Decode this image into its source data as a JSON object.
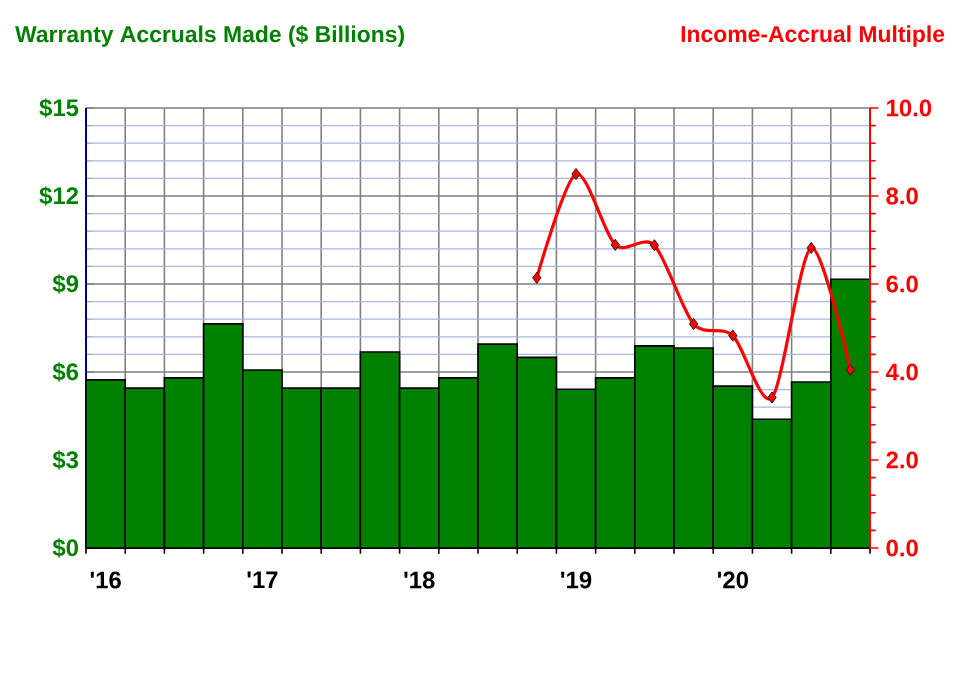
{
  "chart_data": {
    "type": "bar",
    "ylabel": "Warranty Accruals Made ($ Billions)",
    "y2label": "Income-Accrual Multiple",
    "categories": [
      "'16",
      null,
      null,
      null,
      "'17",
      null,
      null,
      null,
      "'18",
      null,
      null,
      null,
      "'19",
      null,
      null,
      null,
      "'20",
      null,
      null,
      null
    ],
    "series": [
      {
        "color": "#008000",
        "values": [
          5.73,
          5.45,
          5.8,
          7.64,
          6.07,
          5.45,
          5.45,
          6.68,
          5.45,
          5.8,
          6.95,
          6.5,
          5.41,
          5.8,
          6.89,
          6.82,
          5.52,
          4.39,
          5.66,
          9.16
        ]
      },
      {
        "type": "line",
        "axis": "y2",
        "color": "#ff0000",
        "marker": "diamond",
        "values": [
          null,
          null,
          null,
          null,
          null,
          null,
          null,
          null,
          null,
          null,
          null,
          6.14,
          8.5,
          6.89,
          6.88,
          5.09,
          4.83,
          3.42,
          6.82,
          4.05
        ]
      }
    ],
    "ylim": [
      0,
      15
    ],
    "yticks": [
      {
        "value": 0,
        "label": "$0"
      },
      {
        "value": 0.6,
        "label": null
      },
      {
        "value": 1.2,
        "label": null
      },
      {
        "value": 1.8,
        "label": null
      },
      {
        "value": 2.4,
        "label": null
      },
      {
        "value": 3,
        "label": "$3"
      },
      {
        "value": 3.6,
        "label": null
      },
      {
        "value": 4.2,
        "label": null
      },
      {
        "value": 4.8,
        "label": null
      },
      {
        "value": 5.4,
        "label": null
      },
      {
        "value": 6,
        "label": "$6"
      },
      {
        "value": 6.6,
        "label": null
      },
      {
        "value": 7.2,
        "label": null
      },
      {
        "value": 7.8,
        "label": null
      },
      {
        "value": 8.4,
        "label": null
      },
      {
        "value": 9,
        "label": "$9"
      },
      {
        "value": 9.6,
        "label": null
      },
      {
        "value": 10.2,
        "label": null
      },
      {
        "value": 10.8,
        "label": null
      },
      {
        "value": 11.4,
        "label": null
      },
      {
        "value": 12,
        "label": "$12"
      },
      {
        "value": 12.6,
        "label": null
      },
      {
        "value": 13.2,
        "label": null
      },
      {
        "value": 13.8,
        "label": null
      },
      {
        "value": 14.4,
        "label": null
      },
      {
        "value": 15,
        "label": "$15"
      }
    ],
    "y2lim": [
      0,
      10
    ],
    "y2ticks": [
      {
        "value": 0,
        "label": "0.0"
      },
      {
        "value": 0.4,
        "label": null
      },
      {
        "value": 0.8,
        "label": null
      },
      {
        "value": 1.2,
        "label": null
      },
      {
        "value": 1.6,
        "label": null
      },
      {
        "value": 2,
        "label": "2.0"
      },
      {
        "value": 2.4,
        "label": null
      },
      {
        "value": 2.8,
        "label": null
      },
      {
        "value": 3.2,
        "label": null
      },
      {
        "value": 3.6,
        "label": null
      },
      {
        "value": 4,
        "label": "4.0"
      },
      {
        "value": 4.4,
        "label": null
      },
      {
        "value": 4.8,
        "label": null
      },
      {
        "value": 5.2,
        "label": null
      },
      {
        "value": 5.6,
        "label": null
      },
      {
        "value": 6,
        "label": "6.0"
      },
      {
        "value": 6.4,
        "label": null
      },
      {
        "value": 6.8,
        "label": null
      },
      {
        "value": 7.2,
        "label": null
      },
      {
        "value": 7.6,
        "label": null
      },
      {
        "value": 8,
        "label": "8.0"
      },
      {
        "value": 8.4,
        "label": null
      },
      {
        "value": 8.8,
        "label": null
      },
      {
        "value": 9.2,
        "label": null
      },
      {
        "value": 9.6,
        "label": null
      },
      {
        "value": 10,
        "label": "10.0"
      }
    ],
    "grid": true
  }
}
